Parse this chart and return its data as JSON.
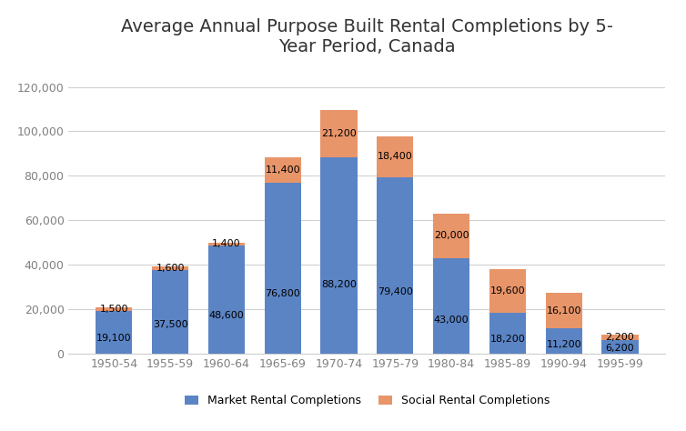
{
  "title": "Average Annual Purpose Built Rental Completions by 5-\nYear Period, Canada",
  "categories": [
    "1950-54",
    "1955-59",
    "1960-64",
    "1965-69",
    "1970-74",
    "1975-79",
    "1980-84",
    "1985-89",
    "1990-94",
    "1995-99"
  ],
  "market_rental": [
    19100,
    37500,
    48600,
    76800,
    88200,
    79400,
    43000,
    18200,
    11200,
    6200
  ],
  "social_rental": [
    1500,
    1600,
    1400,
    11400,
    21200,
    18400,
    20000,
    19600,
    16100,
    2200
  ],
  "market_color": "#5B84C4",
  "social_color": "#E8956A",
  "market_label": "Market Rental Completions",
  "social_label": "Social Rental Completions",
  "ylim": [
    0,
    130000
  ],
  "yticks": [
    0,
    20000,
    40000,
    60000,
    80000,
    100000,
    120000
  ],
  "background_color": "#ffffff",
  "grid_color": "#d0d0d0",
  "title_fontsize": 14,
  "tick_label_color": "#808080",
  "label_fontsize": 8
}
